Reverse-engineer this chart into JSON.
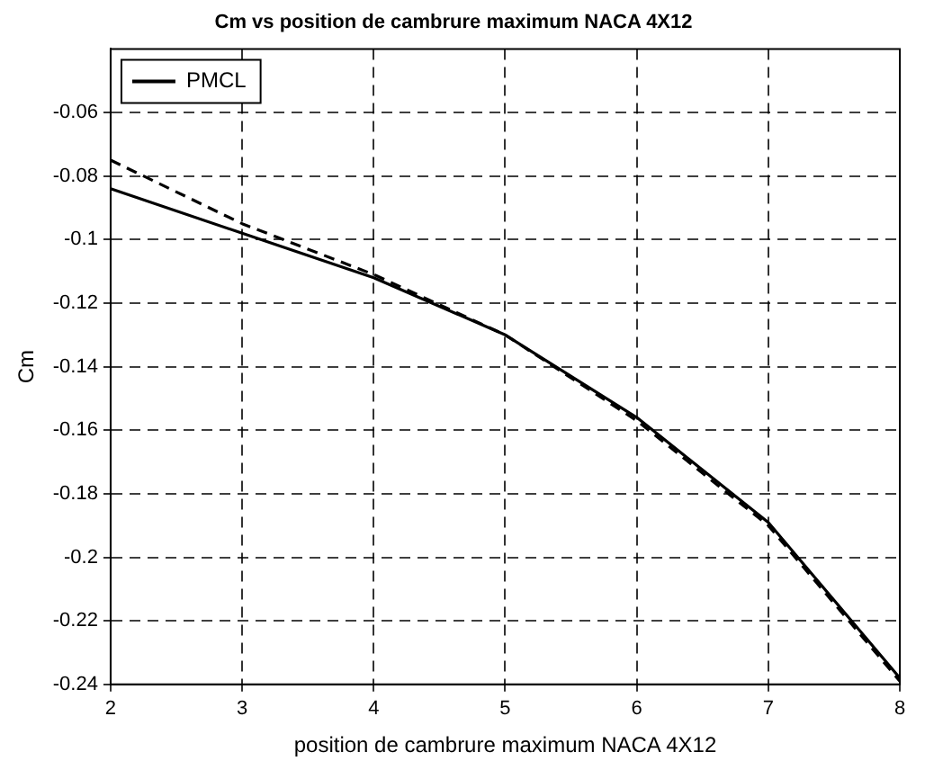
{
  "chart_data": {
    "type": "line",
    "title": "Cm vs position de cambrure maximum NACA 4X12",
    "xlabel": "position de cambrure maximum NACA 4X12",
    "ylabel": "Cm",
    "x": [
      2,
      3,
      4,
      5,
      6,
      7,
      8
    ],
    "series": [
      {
        "name": "PMCL",
        "color": "#000000",
        "values": [
          -0.084,
          -0.098,
          -0.112,
          -0.13,
          -0.156,
          -0.189,
          -0.238
        ],
        "line_style": "solid"
      },
      {
        "color": "#000000",
        "values": [
          -0.075,
          -0.095,
          -0.111,
          -0.13,
          -0.157,
          -0.19,
          -0.239
        ],
        "line_style": "dashed"
      }
    ],
    "xlim": [
      2,
      8
    ],
    "xticks": [
      2,
      3,
      4,
      5,
      6,
      7,
      8
    ],
    "ylim": [
      -0.24,
      -0.04
    ],
    "yticks": [
      -0.24,
      -0.22,
      -0.2,
      -0.18,
      -0.16,
      -0.14,
      -0.12,
      -0.1,
      -0.08,
      -0.06
    ],
    "grid": true,
    "legend": "top left",
    "marker": "none"
  }
}
